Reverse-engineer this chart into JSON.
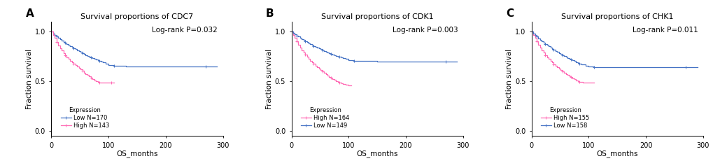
{
  "panels": [
    {
      "label": "A",
      "title": "Survival proportions of CDC7",
      "pvalue": "Log-rank P=0.032",
      "xlabel": "OS_months",
      "ylabel": "Fraction survival",
      "xlim": [
        0,
        300
      ],
      "ylim": [
        -0.05,
        1.1
      ],
      "yticks": [
        0.0,
        0.5,
        1.0
      ],
      "xticks": [
        0,
        100,
        200,
        300
      ],
      "legend_entries": [
        "Low N=170",
        "High N=143"
      ],
      "legend_colors": [
        "#4472C4",
        "#FF69B4"
      ],
      "curve1": {
        "label": "Low N=170",
        "color": "#4472C4",
        "x": [
          0,
          3,
          6,
          9,
          12,
          15,
          18,
          21,
          24,
          27,
          30,
          33,
          36,
          39,
          42,
          45,
          48,
          51,
          54,
          57,
          60,
          63,
          66,
          69,
          72,
          75,
          78,
          81,
          84,
          87,
          90,
          95,
          100,
          110,
          130,
          150,
          170,
          200,
          270,
          290
        ],
        "y": [
          1.0,
          0.985,
          0.97,
          0.955,
          0.94,
          0.925,
          0.91,
          0.9,
          0.89,
          0.875,
          0.865,
          0.855,
          0.845,
          0.835,
          0.825,
          0.815,
          0.805,
          0.795,
          0.785,
          0.775,
          0.765,
          0.758,
          0.75,
          0.743,
          0.735,
          0.728,
          0.72,
          0.713,
          0.705,
          0.698,
          0.69,
          0.678,
          0.665,
          0.655,
          0.65,
          0.65,
          0.65,
          0.65,
          0.65,
          0.65
        ]
      },
      "curve2": {
        "label": "High N=143",
        "color": "#FF69B4",
        "x": [
          0,
          3,
          6,
          9,
          12,
          15,
          18,
          21,
          24,
          27,
          30,
          33,
          36,
          39,
          42,
          45,
          48,
          51,
          54,
          57,
          60,
          63,
          66,
          69,
          72,
          75,
          78,
          81,
          84,
          87,
          90,
          95,
          100,
          105,
          110
        ],
        "y": [
          1.0,
          0.97,
          0.94,
          0.9,
          0.865,
          0.835,
          0.81,
          0.785,
          0.765,
          0.745,
          0.725,
          0.71,
          0.695,
          0.68,
          0.665,
          0.65,
          0.635,
          0.62,
          0.605,
          0.59,
          0.575,
          0.563,
          0.55,
          0.538,
          0.525,
          0.513,
          0.503,
          0.495,
          0.49,
          0.49,
          0.49,
          0.49,
          0.49,
          0.49,
          0.49
        ]
      }
    },
    {
      "label": "B",
      "title": "Survival proportions of CDK1",
      "pvalue": "Log-rank P=0.003",
      "xlabel": "OS_months",
      "ylabel": "Fraction survival",
      "xlim": [
        0,
        300
      ],
      "ylim": [
        -0.05,
        1.1
      ],
      "yticks": [
        0.0,
        0.5,
        1.0
      ],
      "xticks": [
        0,
        100,
        200,
        300
      ],
      "legend_entries": [
        "High N=164",
        "Low N=149"
      ],
      "legend_colors": [
        "#FF69B4",
        "#4472C4"
      ],
      "curve1": {
        "label": "High N=164",
        "color": "#FF69B4",
        "x": [
          0,
          3,
          6,
          9,
          12,
          15,
          18,
          21,
          24,
          27,
          30,
          33,
          36,
          39,
          42,
          45,
          48,
          51,
          54,
          57,
          60,
          63,
          66,
          69,
          72,
          75,
          78,
          81,
          84,
          87,
          90,
          95,
          100,
          105
        ],
        "y": [
          1.0,
          0.97,
          0.94,
          0.905,
          0.87,
          0.84,
          0.815,
          0.79,
          0.768,
          0.748,
          0.728,
          0.71,
          0.693,
          0.676,
          0.66,
          0.644,
          0.628,
          0.613,
          0.599,
          0.585,
          0.572,
          0.56,
          0.548,
          0.536,
          0.525,
          0.514,
          0.504,
          0.495,
          0.487,
          0.48,
          0.474,
          0.468,
          0.462,
          0.462
        ]
      },
      "curve2": {
        "label": "Low N=149",
        "color": "#4472C4",
        "x": [
          0,
          3,
          6,
          9,
          12,
          15,
          18,
          21,
          24,
          27,
          30,
          33,
          36,
          39,
          42,
          45,
          48,
          51,
          54,
          57,
          60,
          63,
          66,
          69,
          72,
          75,
          78,
          81,
          84,
          87,
          90,
          95,
          100,
          110,
          130,
          150,
          170,
          200,
          270,
          290
        ],
        "y": [
          1.0,
          0.988,
          0.976,
          0.963,
          0.95,
          0.938,
          0.927,
          0.916,
          0.905,
          0.895,
          0.885,
          0.875,
          0.866,
          0.857,
          0.848,
          0.84,
          0.832,
          0.824,
          0.816,
          0.808,
          0.8,
          0.793,
          0.786,
          0.779,
          0.772,
          0.765,
          0.758,
          0.752,
          0.746,
          0.74,
          0.734,
          0.725,
          0.715,
          0.71,
          0.705,
          0.7,
          0.7,
          0.7,
          0.7,
          0.7
        ]
      }
    },
    {
      "label": "C",
      "title": "Survival proportions of CHK1",
      "pvalue": "Log-rank P=0.011",
      "xlabel": "OS_months",
      "ylabel": "Fraction survival",
      "xlim": [
        0,
        300
      ],
      "ylim": [
        -0.05,
        1.1
      ],
      "yticks": [
        0.0,
        0.5,
        1.0
      ],
      "xticks": [
        0,
        100,
        200,
        300
      ],
      "legend_entries": [
        "High N=155",
        "Low N=158"
      ],
      "legend_colors": [
        "#FF69B4",
        "#4472C4"
      ],
      "curve1": {
        "label": "High N=155",
        "color": "#FF69B4",
        "x": [
          0,
          3,
          6,
          9,
          12,
          15,
          18,
          21,
          24,
          27,
          30,
          33,
          36,
          39,
          42,
          45,
          48,
          51,
          54,
          57,
          60,
          63,
          66,
          69,
          72,
          75,
          78,
          81,
          84,
          87,
          90,
          95,
          100,
          110
        ],
        "y": [
          1.0,
          0.968,
          0.936,
          0.903,
          0.87,
          0.84,
          0.814,
          0.789,
          0.766,
          0.745,
          0.725,
          0.707,
          0.69,
          0.673,
          0.658,
          0.643,
          0.628,
          0.614,
          0.601,
          0.588,
          0.576,
          0.564,
          0.553,
          0.542,
          0.532,
          0.522,
          0.513,
          0.505,
          0.498,
          0.494,
          0.49,
          0.49,
          0.49,
          0.49
        ]
      },
      "curve2": {
        "label": "Low N=158",
        "color": "#4472C4",
        "x": [
          0,
          3,
          6,
          9,
          12,
          15,
          18,
          21,
          24,
          27,
          30,
          33,
          36,
          39,
          42,
          45,
          48,
          51,
          54,
          57,
          60,
          63,
          66,
          69,
          72,
          75,
          78,
          81,
          84,
          87,
          90,
          95,
          100,
          110,
          130,
          150,
          170,
          200,
          270,
          290
        ],
        "y": [
          1.0,
          0.985,
          0.97,
          0.953,
          0.935,
          0.92,
          0.906,
          0.892,
          0.879,
          0.866,
          0.853,
          0.841,
          0.83,
          0.819,
          0.808,
          0.797,
          0.786,
          0.776,
          0.766,
          0.756,
          0.746,
          0.737,
          0.728,
          0.72,
          0.712,
          0.704,
          0.696,
          0.688,
          0.681,
          0.675,
          0.669,
          0.66,
          0.65,
          0.645,
          0.64,
          0.64,
          0.64,
          0.64,
          0.64,
          0.64
        ]
      }
    }
  ],
  "bg_color": "#ffffff",
  "tick_fontsize": 7,
  "label_fontsize": 7.5,
  "title_fontsize": 8,
  "legend_fontsize": 6.0,
  "pvalue_fontsize": 7.5,
  "panel_label_fontsize": 11
}
